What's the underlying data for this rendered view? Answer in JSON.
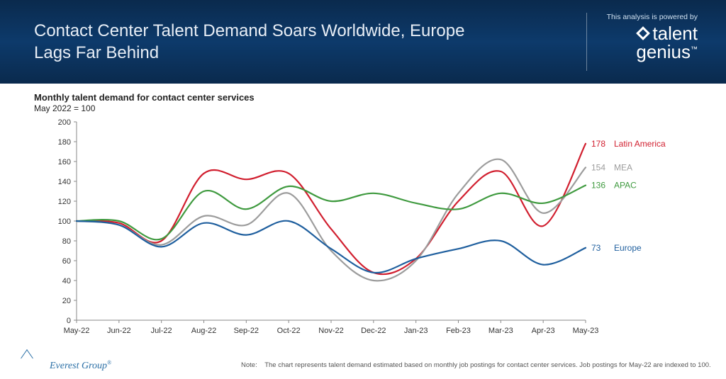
{
  "header": {
    "title": "Contact Center Talent Demand Soars Worldwide, Europe Lags Far Behind",
    "powered": "This analysis is powered by",
    "logo_line1": "talent",
    "logo_line2": "genius",
    "tm": "™"
  },
  "chart": {
    "type": "line",
    "title": "Monthly talent demand for contact center services",
    "subtitle": "May 2022 = 100",
    "title_fontsize": 13,
    "subtitle_fontsize": 12,
    "background_color": "#ffffff",
    "axis_color": "#888888",
    "axis_font_color": "#333333",
    "axis_fontsize": 11,
    "line_width": 2.2,
    "x_categories": [
      "May-22",
      "Jun-22",
      "Jul-22",
      "Aug-22",
      "Sep-22",
      "Oct-22",
      "Nov-22",
      "Dec-22",
      "Jan-23",
      "Feb-23",
      "Mar-23",
      "Apr-23",
      "May-23"
    ],
    "ylim": [
      0,
      200
    ],
    "ytick_step": 20,
    "series": [
      {
        "name": "Latin America",
        "color": "#d11f2f",
        "end_value": 178,
        "values": [
          100,
          98,
          80,
          148,
          142,
          148,
          92,
          48,
          62,
          120,
          150,
          95,
          178
        ]
      },
      {
        "name": "MEA",
        "color": "#9c9c9c",
        "end_value": 154,
        "values": [
          100,
          96,
          76,
          105,
          96,
          128,
          70,
          40,
          60,
          128,
          162,
          108,
          154
        ]
      },
      {
        "name": "APAC",
        "color": "#3f9a3f",
        "end_value": 136,
        "values": [
          100,
          100,
          82,
          130,
          112,
          135,
          120,
          128,
          118,
          112,
          128,
          118,
          136
        ]
      },
      {
        "name": "Europe",
        "color": "#1f5f9e",
        "end_value": 73,
        "values": [
          100,
          96,
          74,
          98,
          86,
          100,
          72,
          48,
          62,
          72,
          80,
          56,
          73
        ]
      }
    ]
  },
  "note": {
    "label": "Note:",
    "text": "The chart represents talent demand estimated based on monthly job postings for contact center services. Job postings for May-22 are indexed to 100."
  },
  "footer_logo": {
    "text": "Everest Group",
    "r": "®"
  }
}
